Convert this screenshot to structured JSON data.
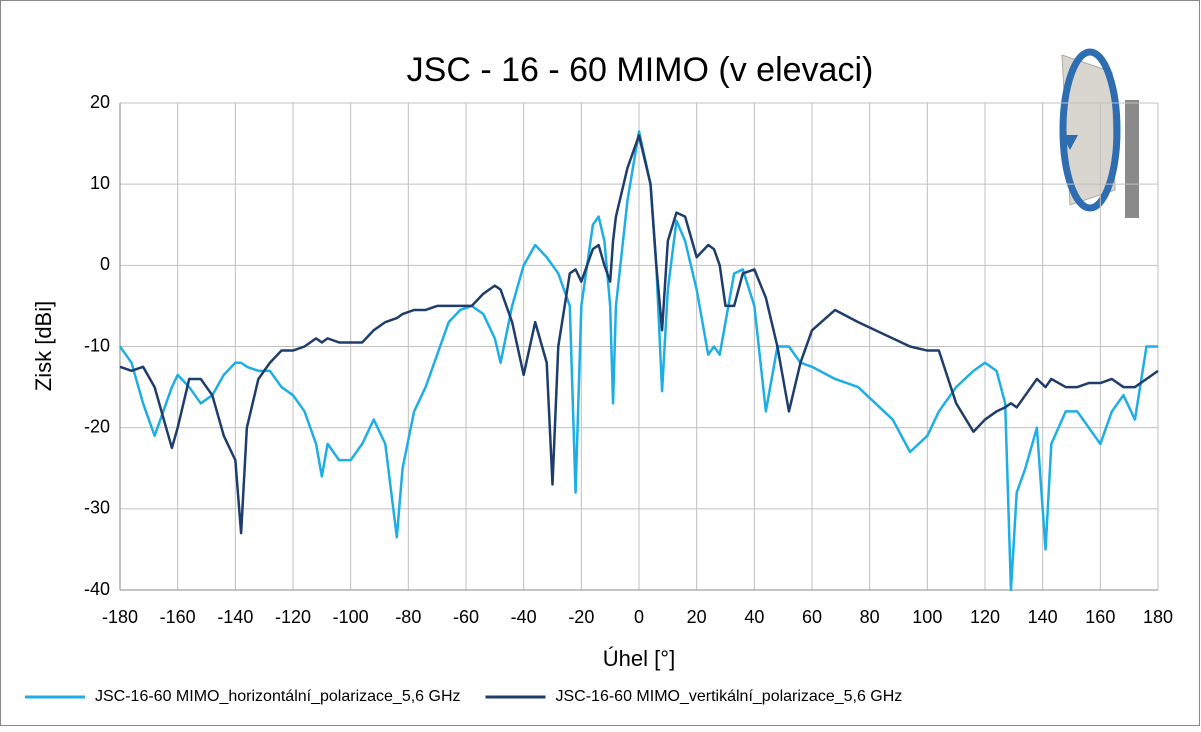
{
  "chart_data": {
    "type": "line",
    "title": "JSC - 16 - 60 MIMO (v elevaci)",
    "x_label": "Úhel [°]",
    "y_label": "Zisk [dBi]",
    "x": [
      -180,
      -176,
      -172,
      -168,
      -164,
      -162,
      -160,
      -156,
      -152,
      -148,
      -144,
      -140,
      -138,
      -136,
      -132,
      -128,
      -124,
      -120,
      -116,
      -112,
      -110,
      -108,
      -104,
      -100,
      -96,
      -92,
      -88,
      -84,
      -82,
      -78,
      -74,
      -70,
      -66,
      -62,
      -58,
      -54,
      -50,
      -48,
      -44,
      -40,
      -36,
      -32,
      -30,
      -28,
      -24,
      -22,
      -20,
      -16,
      -14,
      -12,
      -10,
      -9,
      -8,
      -4,
      0,
      4,
      6,
      8,
      10,
      13,
      16,
      20,
      24,
      26,
      28,
      30,
      33,
      36,
      40,
      44,
      48,
      52,
      56,
      60,
      68,
      76,
      82,
      88,
      94,
      100,
      104,
      110,
      116,
      120,
      124,
      127,
      129,
      131,
      134,
      138,
      141,
      143,
      148,
      152,
      156,
      160,
      164,
      168,
      172,
      176,
      180
    ],
    "series": [
      {
        "name": "JSC-16-60 MIMO_horizontální_polarizace_5,6 GHz",
        "color": "#1eaee6",
        "values": [
          -10,
          -12,
          -17,
          -21,
          -17,
          -15,
          -13.5,
          -15,
          -17,
          -16,
          -13.5,
          -12,
          -12,
          -12.5,
          -13,
          -13,
          -15,
          -16,
          -18,
          -22,
          -26,
          -22,
          -24,
          -24,
          -22,
          -19,
          -22,
          -33.5,
          -25,
          -18,
          -15,
          -11,
          -7,
          -5.5,
          -5,
          -6,
          -9,
          -12,
          -5,
          0,
          2.5,
          1,
          0,
          -1,
          -5,
          -28,
          -5,
          5,
          6,
          3,
          -5,
          -17,
          -5,
          8,
          16.5,
          10,
          0,
          -15.5,
          -3,
          5.5,
          3,
          -3,
          -11,
          -10,
          -11,
          -7,
          -1,
          -0.5,
          -5,
          -18,
          -10,
          -10,
          -12,
          -12.5,
          -14,
          -15,
          -17,
          -19,
          -23,
          -21,
          -18,
          -15,
          -13,
          -12,
          -13,
          -17,
          -40,
          -28,
          -25,
          -20,
          -35,
          -22,
          -18,
          -18,
          -20,
          -22,
          -18,
          -16,
          -19,
          -10,
          -10
        ]
      },
      {
        "name": "JSC-16-60 MIMO_vertikální_polarizace_5,6 GHz",
        "color": "#1f3d6b",
        "values": [
          -12.5,
          -13,
          -12.5,
          -15,
          -20,
          -22.5,
          -20,
          -14,
          -14,
          -16,
          -21,
          -24,
          -33,
          -20,
          -14,
          -12,
          -10.5,
          -10.5,
          -10,
          -9,
          -9.5,
          -9,
          -9.5,
          -9.5,
          -9.5,
          -8,
          -7,
          -6.5,
          -6,
          -5.5,
          -5.5,
          -5,
          -5,
          -5,
          -5,
          -3.5,
          -2.5,
          -3,
          -7,
          -13.5,
          -7,
          -12,
          -27,
          -10,
          -1,
          -0.5,
          -2,
          2,
          2.5,
          0,
          -2,
          3,
          6,
          12,
          16,
          10,
          0,
          -8,
          3,
          6.5,
          6,
          1,
          2.5,
          2,
          0,
          -5,
          -5,
          -1,
          -0.5,
          -4,
          -10,
          -18,
          -12,
          -8,
          -5.5,
          -7,
          -8,
          -9,
          -10,
          -10.5,
          -10.5,
          -17,
          -20.5,
          -19,
          -18,
          -17.5,
          -17,
          -17.5,
          -16,
          -14,
          -15,
          -14,
          -15,
          -15,
          -14.5,
          -14.5,
          -14,
          -15,
          -15,
          -14,
          -13
        ]
      }
    ],
    "xlim": [
      -180,
      180
    ],
    "xticks": [
      -180,
      -160,
      -140,
      -120,
      -100,
      -80,
      -60,
      -40,
      -20,
      0,
      20,
      40,
      60,
      80,
      100,
      120,
      140,
      160,
      180
    ],
    "ylim": [
      -40,
      20
    ],
    "yticks": [
      -40,
      -30,
      -20,
      -10,
      0,
      10,
      20
    ],
    "grid": true,
    "legend": "bottom"
  }
}
